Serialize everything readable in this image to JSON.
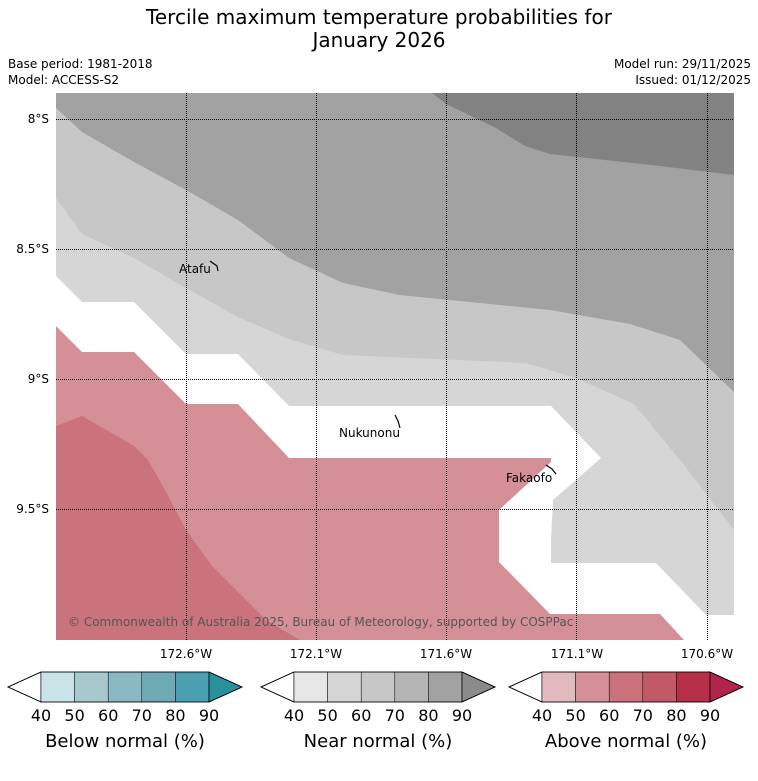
{
  "header": {
    "title_line1": "Tercile maximum temperature probabilities for",
    "title_line2": "January 2026",
    "base_period": "Base period: 1981-2018",
    "model": "Model: ACCESS-S2",
    "model_run": "Model run: 29/11/2025",
    "issued": "Issued: 01/12/2025"
  },
  "map": {
    "lat_labels": [
      "8°S",
      "8.5°S",
      "9°S",
      "9.5°S"
    ],
    "lon_labels": [
      "172.6°W",
      "172.1°W",
      "171.6°W",
      "171.1°W",
      "170.6°W"
    ],
    "places": [
      "Atafu",
      "Nukunonu",
      "Fakaofo"
    ],
    "copyright": "© Commonwealth of Australia 2025, Bureau of Meteorology, supported by COSPPac"
  },
  "colorbars": [
    {
      "label": "Below normal (%)",
      "ticks": [
        "40",
        "50",
        "60",
        "70",
        "80",
        "90"
      ],
      "colors": [
        "#c9e3e8",
        "#a7c9ce",
        "#8ab8c3",
        "#6daab5",
        "#4aa0b1",
        "#2a909e"
      ]
    },
    {
      "label": "Near normal (%)",
      "ticks": [
        "40",
        "50",
        "60",
        "70",
        "80",
        "90"
      ],
      "colors": [
        "#e6e6e6",
        "#d6d6d6",
        "#c7c7c7",
        "#b4b4b4",
        "#a2a2a2",
        "#8a8a8a"
      ]
    },
    {
      "label": "Above normal (%)",
      "ticks": [
        "40",
        "50",
        "60",
        "70",
        "80",
        "90"
      ],
      "colors": [
        "#e2b9bd",
        "#d58f97",
        "#cb737c",
        "#c25966",
        "#b42f47",
        "#b02549"
      ]
    }
  ]
}
